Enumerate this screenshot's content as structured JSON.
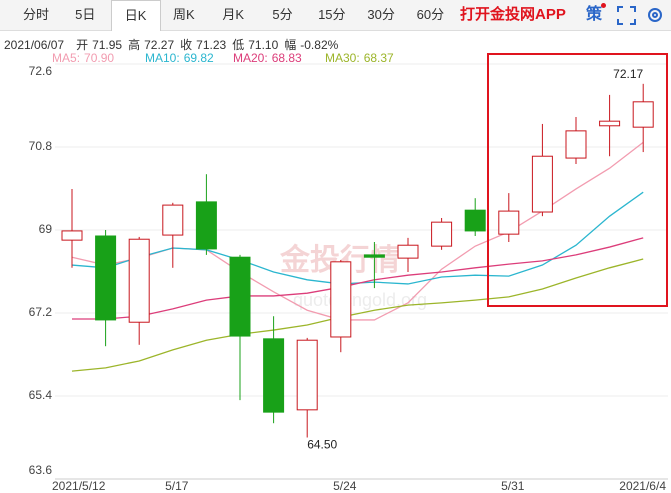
{
  "toolbar": {
    "tabs": [
      {
        "label": "分时"
      },
      {
        "label": "5日"
      },
      {
        "label": "日K",
        "active": true
      },
      {
        "label": "周K"
      },
      {
        "label": "月K"
      },
      {
        "label": "5分"
      },
      {
        "label": "15分"
      },
      {
        "label": "30分"
      },
      {
        "label": "60分"
      }
    ],
    "app_link": "打开金投网APP",
    "strategy": "策"
  },
  "info": {
    "date": "2021/06/07",
    "fields": [
      {
        "label": "开",
        "value": "71.95"
      },
      {
        "label": "高",
        "value": "72.27"
      },
      {
        "label": "收",
        "value": "71.23"
      },
      {
        "label": "低",
        "value": "71.10"
      },
      {
        "label": "幅",
        "value": "-0.82%"
      }
    ]
  },
  "chart_data": {
    "type": "candlestick",
    "categories": [
      "2021/5/12",
      null,
      null,
      "5/17",
      null,
      null,
      null,
      null,
      "5/24",
      null,
      null,
      null,
      null,
      "5/31",
      null,
      null,
      null,
      "2021/6/4"
    ],
    "open": [
      68.78,
      68.87,
      67.0,
      68.89,
      69.61,
      68.41,
      66.64,
      65.1,
      66.68,
      68.46,
      68.39,
      68.65,
      69.43,
      68.91,
      69.39,
      70.56,
      71.26,
      71.23
    ],
    "high": [
      69.89,
      69.0,
      68.85,
      69.59,
      70.21,
      68.46,
      67.13,
      66.66,
      68.35,
      68.74,
      68.83,
      69.26,
      69.69,
      69.8,
      71.3,
      71.45,
      71.93,
      72.17
    ],
    "low": [
      68.18,
      66.48,
      66.51,
      68.18,
      68.46,
      65.31,
      64.81,
      64.5,
      66.35,
      67.74,
      68.09,
      68.57,
      68.87,
      68.74,
      69.3,
      70.43,
      70.6,
      70.69
    ],
    "close": [
      68.98,
      67.05,
      68.8,
      69.54,
      68.59,
      66.7,
      65.05,
      66.61,
      68.31,
      68.41,
      68.67,
      69.17,
      68.98,
      69.41,
      70.6,
      71.15,
      71.36,
      71.78
    ],
    "up_color": "#c8161d",
    "down_color": "#18a118",
    "max_label": "72.17",
    "min_label": "64.50",
    "ma": [
      {
        "name": "MA5",
        "last_label": "70.90",
        "color": "#f29cb0",
        "values": [
          68.41,
          68.24,
          68.39,
          68.61,
          68.57,
          68.09,
          67.66,
          67.26,
          67.05,
          67.05,
          67.42,
          68.15,
          68.65,
          68.96,
          69.41,
          69.89,
          70.34,
          70.9
        ]
      },
      {
        "name": "MA10",
        "last_label": "69.82",
        "color": "#2bb6cf",
        "values": [
          68.24,
          68.18,
          68.41,
          68.61,
          68.57,
          68.35,
          68.09,
          67.92,
          67.83,
          67.87,
          67.83,
          67.98,
          68.02,
          68.0,
          68.24,
          68.67,
          69.3,
          69.82
        ]
      },
      {
        "name": "MA20",
        "last_label": "68.83",
        "color": "#dc3d7a",
        "values": [
          67.07,
          67.07,
          67.13,
          67.29,
          67.48,
          67.57,
          67.57,
          67.63,
          67.76,
          67.92,
          68.02,
          68.09,
          68.18,
          68.26,
          68.33,
          68.46,
          68.63,
          68.83
        ]
      },
      {
        "name": "MA30",
        "last_label": "68.37",
        "color": "#9cb52a",
        "values": [
          65.94,
          66.01,
          66.16,
          66.4,
          66.61,
          66.74,
          66.83,
          66.94,
          67.11,
          67.26,
          67.37,
          67.42,
          67.48,
          67.55,
          67.72,
          67.96,
          68.18,
          68.37
        ]
      }
    ],
    "ylim": [
      63.6,
      72.6
    ],
    "yticks": [
      72.6,
      70.8,
      69,
      67.2,
      65.4,
      63.6
    ],
    "grid": true,
    "watermark": [
      "金投行情",
      "quote.cngold.org"
    ]
  }
}
